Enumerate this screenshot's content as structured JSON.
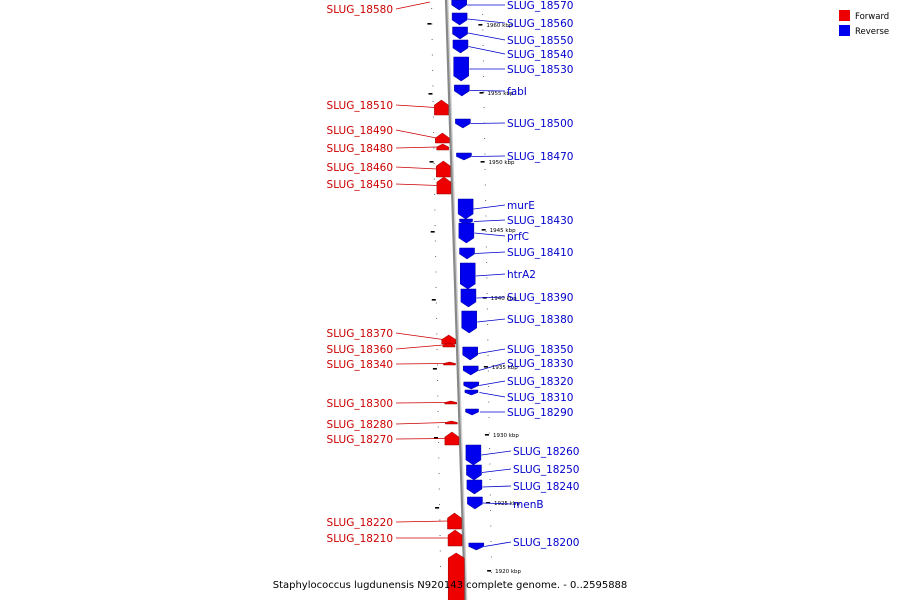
{
  "caption": "Staphylococcus lugdunensis N920143 complete genome. - 0..2595888",
  "legend": [
    {
      "label": "Forward",
      "color": "#ee0000"
    },
    {
      "label": "Reverse",
      "color": "#0000ee"
    }
  ],
  "colors": {
    "forward": "#ee0000",
    "reverse": "#0000ee",
    "backbone": "#888888",
    "forward_label": "#cc0000",
    "reverse_label": "#0000cc"
  },
  "scale_ticks": [
    "1960 kbp",
    "1955 kbp",
    "1950 kbp",
    "1945 kbp",
    "1940 kbp",
    "1935 kbp",
    "1930 kbp",
    "1925 kbp",
    "1920 kbp"
  ],
  "features_forward": [
    "SLUG_18580",
    "SLUG_18510",
    "SLUG_18490",
    "SLUG_18480",
    "SLUG_18460",
    "SLUG_18450",
    "SLUG_18370",
    "SLUG_18360",
    "SLUG_18340",
    "SLUG_18300",
    "SLUG_18280",
    "SLUG_18270",
    "SLUG_18220",
    "SLUG_18210"
  ],
  "features_reverse": [
    "SLUG_18570",
    "SLUG_18560",
    "SLUG_18550",
    "SLUG_18540",
    "SLUG_18530",
    "fabI",
    "SLUG_18500",
    "SLUG_18470",
    "murE",
    "SLUG_18430",
    "prfC",
    "SLUG_18410",
    "htrA2",
    "SLUG_18390",
    "SLUG_18380",
    "SLUG_18350",
    "SLUG_18330",
    "SLUG_18320",
    "SLUG_18310",
    "SLUG_18290",
    "SLUG_18260",
    "SLUG_18250",
    "SLUG_18240",
    "menB",
    "SLUG_18200"
  ]
}
